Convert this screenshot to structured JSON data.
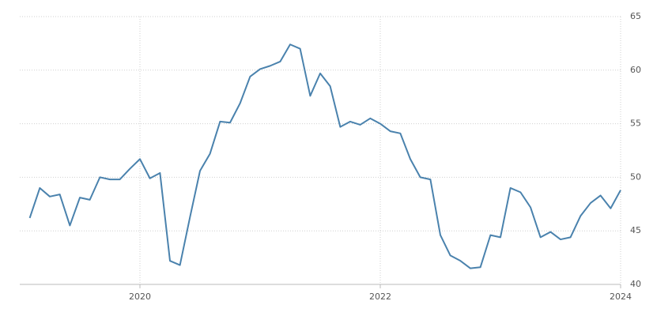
{
  "chart_data": {
    "type": "line",
    "x": [
      2019.083,
      2019.167,
      2019.25,
      2019.333,
      2019.417,
      2019.5,
      2019.583,
      2019.667,
      2019.75,
      2019.833,
      2019.917,
      2020,
      2020.083,
      2020.167,
      2020.25,
      2020.333,
      2020.417,
      2020.5,
      2020.583,
      2020.667,
      2020.75,
      2020.833,
      2020.917,
      2021,
      2021.083,
      2021.167,
      2021.25,
      2021.333,
      2021.417,
      2021.5,
      2021.583,
      2021.667,
      2021.75,
      2021.833,
      2021.917,
      2022,
      2022.083,
      2022.167,
      2022.25,
      2022.333,
      2022.417,
      2022.5,
      2022.583,
      2022.667,
      2022.75,
      2022.833,
      2022.917,
      2023,
      2023.083,
      2023.167,
      2023.25,
      2023.333,
      2023.417,
      2023.5,
      2023.583,
      2023.667,
      2023.75,
      2023.833,
      2023.917,
      2024
    ],
    "series": [
      {
        "color": "#4a82ad",
        "values": [
          46.2,
          49.0,
          48.2,
          48.4,
          45.5,
          48.1,
          47.9,
          50.0,
          49.8,
          49.8,
          50.8,
          51.7,
          49.9,
          50.4,
          42.2,
          41.8,
          46.3,
          50.6,
          52.2,
          55.2,
          55.1,
          56.9,
          59.4,
          60.1,
          60.4,
          60.8,
          62.4,
          62.0,
          57.6,
          59.7,
          58.5,
          54.7,
          55.2,
          54.9,
          55.5,
          55.0,
          54.3,
          54.1,
          51.7,
          50.0,
          49.8,
          44.6,
          42.7,
          42.2,
          41.5,
          41.6,
          44.6,
          44.4,
          49.0,
          48.6,
          47.2,
          44.4,
          44.9,
          44.2,
          44.4,
          46.4,
          47.6,
          48.3,
          47.1,
          48.8
        ]
      }
    ],
    "xlim": [
      2019,
      2024
    ],
    "xticks": [
      2020,
      2022,
      2024
    ],
    "ylim": [
      40,
      65
    ],
    "yticks": [
      40,
      45,
      50,
      55,
      60,
      65
    ],
    "grid": true
  }
}
